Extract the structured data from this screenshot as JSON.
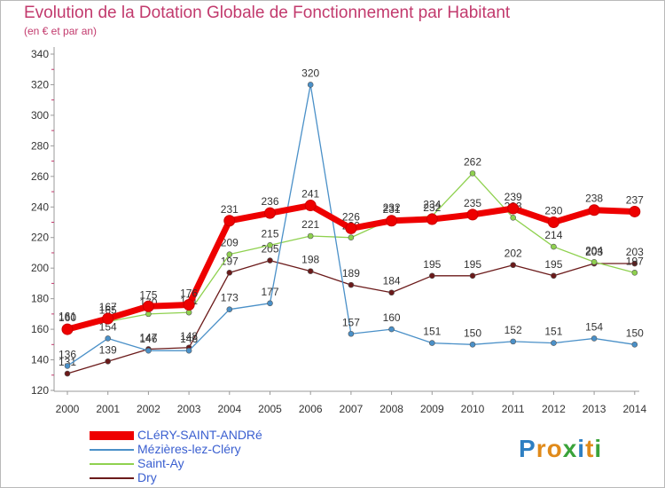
{
  "chart_data": {
    "type": "line",
    "title": "Evolution de la Dotation Globale de Fonctionnement par Habitant",
    "subtitle": "(en € et par an)",
    "xlabel": "",
    "ylabel": "",
    "ylim": [
      120,
      340
    ],
    "yticks": [
      120,
      140,
      160,
      180,
      200,
      220,
      240,
      260,
      280,
      300,
      320,
      340
    ],
    "categories": [
      "2000",
      "2001",
      "2002",
      "2003",
      "2004",
      "2005",
      "2006",
      "2007",
      "2008",
      "2009",
      "2010",
      "2011",
      "2012",
      "2013",
      "2014"
    ],
    "grid": false,
    "legend_position": "bottom-left",
    "series": [
      {
        "name": "Dry",
        "color": "#6b1a1a",
        "values": [
          131,
          139,
          147,
          148,
          197,
          205,
          198,
          189,
          184,
          195,
          195,
          202,
          195,
          203,
          203
        ]
      },
      {
        "name": "Saint-Ay",
        "color": "#8fd14f",
        "values": [
          161,
          165,
          170,
          171,
          209,
          215,
          221,
          220,
          232,
          234,
          262,
          233,
          214,
          204,
          197
        ]
      },
      {
        "name": "Mézières-lez-Cléry",
        "color": "#4a90c8",
        "values": [
          136,
          154,
          146,
          146,
          173,
          177,
          320,
          157,
          160,
          151,
          150,
          152,
          151,
          154,
          150
        ]
      },
      {
        "name": "CLéRY-SAINT-ANDRé",
        "color": "#ee0000",
        "values": [
          160,
          167,
          175,
          176,
          231,
          236,
          241,
          226,
          231,
          232,
          235,
          239,
          230,
          238,
          237
        ]
      }
    ],
    "legend_order": [
      "CLéRY-SAINT-ANDRé",
      "Mézières-lez-Cléry",
      "Saint-Ay",
      "Dry"
    ]
  },
  "logo": {
    "letters": [
      "P",
      "r",
      "o",
      "x",
      "i",
      "t",
      "i"
    ]
  }
}
